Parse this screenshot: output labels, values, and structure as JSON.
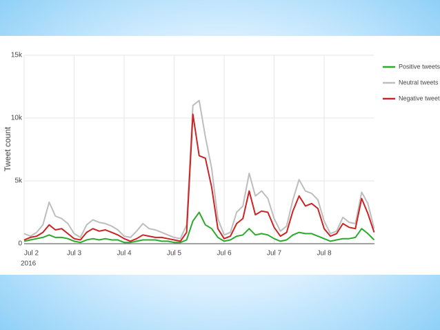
{
  "chart_data": {
    "type": "line",
    "y_label": "Tweet count",
    "x_year_label": "2016",
    "x": [
      0,
      0.125,
      0.25,
      0.375,
      0.5,
      0.625,
      0.75,
      0.875,
      1,
      1.125,
      1.25,
      1.375,
      1.5,
      1.625,
      1.75,
      1.875,
      2,
      2.125,
      2.25,
      2.375,
      2.5,
      2.625,
      2.75,
      2.875,
      3,
      3.125,
      3.25,
      3.375,
      3.5,
      3.625,
      3.75,
      3.875,
      4,
      4.125,
      4.25,
      4.375,
      4.5,
      4.625,
      4.75,
      4.875,
      5,
      5.125,
      5.25,
      5.375,
      5.5,
      5.625,
      5.75,
      5.875,
      6,
      6.125,
      6.25,
      6.375,
      6.5,
      6.625,
      6.75,
      6.875,
      7
    ],
    "series": [
      {
        "name": "Positive tweets",
        "color": "#2aaa2a",
        "values": [
          200,
          300,
          400,
          500,
          700,
          500,
          500,
          400,
          200,
          100,
          300,
          400,
          300,
          400,
          300,
          300,
          100,
          100,
          200,
          300,
          300,
          300,
          200,
          200,
          100,
          100,
          300,
          1800,
          2500,
          1500,
          1200,
          500,
          200,
          300,
          600,
          700,
          1200,
          700,
          800,
          700,
          400,
          200,
          300,
          700,
          900,
          800,
          800,
          600,
          400,
          200,
          300,
          400,
          400,
          500,
          1200,
          800,
          300
        ]
      },
      {
        "name": "Neutral tweets",
        "color": "#bdbdbd",
        "values": [
          800,
          600,
          900,
          1500,
          3300,
          2200,
          2000,
          1600,
          800,
          500,
          1500,
          1900,
          1700,
          1600,
          1400,
          1100,
          600,
          500,
          1000,
          1600,
          1200,
          1100,
          900,
          700,
          500,
          400,
          1500,
          11000,
          11400,
          8500,
          6000,
          2000,
          700,
          900,
          2500,
          3000,
          5600,
          3800,
          4200,
          3600,
          2000,
          1000,
          1400,
          3500,
          5100,
          4200,
          4000,
          3500,
          1800,
          800,
          1000,
          2100,
          1700,
          1600,
          4100,
          3200,
          1200
        ]
      },
      {
        "name": "Negative tweets",
        "color": "#cc2222",
        "values": [
          300,
          500,
          600,
          900,
          1500,
          1100,
          1200,
          800,
          400,
          300,
          900,
          1200,
          1000,
          1100,
          900,
          700,
          400,
          200,
          400,
          700,
          600,
          500,
          500,
          400,
          300,
          200,
          900,
          10300,
          7000,
          6800,
          4500,
          1200,
          400,
          600,
          1600,
          2000,
          4200,
          2300,
          2600,
          2500,
          1300,
          600,
          900,
          2600,
          3800,
          3000,
          3200,
          2800,
          1200,
          600,
          800,
          1600,
          1300,
          1200,
          3600,
          2400,
          900
        ]
      }
    ],
    "xlim": [
      0,
      7
    ],
    "xticks": [
      {
        "value": 0,
        "label": "Jul 2"
      },
      {
        "value": 1,
        "label": "Jul 3"
      },
      {
        "value": 2,
        "label": "Jul 4"
      },
      {
        "value": 3,
        "label": "Jul 5"
      },
      {
        "value": 4,
        "label": "Jul 6"
      },
      {
        "value": 5,
        "label": "Jul 7"
      },
      {
        "value": 6,
        "label": "Jul 8"
      }
    ],
    "ylim": [
      0,
      15000
    ],
    "yticks": [
      0,
      {
        "value": 5000,
        "label": "5k"
      },
      {
        "value": 10000,
        "label": "10k"
      },
      {
        "value": 15000,
        "label": "15k"
      }
    ],
    "grid": true,
    "legend": "right"
  }
}
